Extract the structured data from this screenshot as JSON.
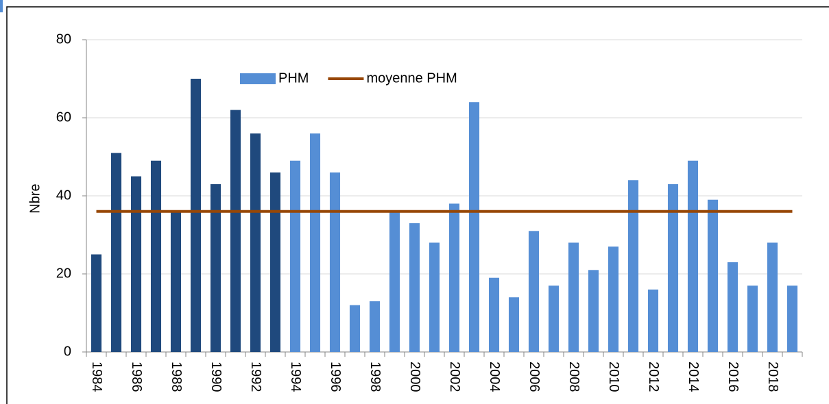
{
  "chart_data": {
    "type": "bar",
    "y_label": "Nbre",
    "categories": [
      "1984",
      null,
      "1986",
      null,
      "1988",
      null,
      "1990",
      null,
      "1992",
      null,
      "1994",
      null,
      "1996",
      null,
      "1998",
      null,
      "2000",
      null,
      "2002",
      null,
      "2004",
      null,
      "2006",
      null,
      "2008",
      null,
      "2010",
      null,
      "2012",
      null,
      "2014",
      null,
      "2016",
      null,
      "2018",
      null
    ],
    "series": [
      {
        "name": "PHM",
        "type": "bar",
        "color": "#558ed5",
        "colors": [
          "#1f497d",
          "#1f497d",
          "#1f497d",
          "#1f497d",
          "#1f497d",
          "#1f497d",
          "#1f497d",
          "#1f497d",
          "#1f497d",
          "#1f497d",
          "#558ed5",
          "#558ed5",
          "#558ed5",
          "#558ed5",
          "#558ed5",
          "#558ed5",
          "#558ed5",
          "#558ed5",
          "#558ed5",
          "#558ed5",
          "#558ed5",
          "#558ed5",
          "#558ed5",
          "#558ed5",
          "#558ed5",
          "#558ed5",
          "#558ed5",
          "#558ed5",
          "#558ed5",
          "#558ed5",
          "#558ed5",
          "#558ed5",
          "#558ed5",
          "#558ed5",
          "#558ed5",
          "#558ed5"
        ],
        "values": [
          25,
          51,
          45,
          49,
          36,
          70,
          43,
          62,
          56,
          46,
          49,
          56,
          46,
          12,
          13,
          36,
          33,
          28,
          38,
          64,
          19,
          14,
          31,
          17,
          28,
          21,
          27,
          44,
          16,
          43,
          49,
          39,
          23,
          17,
          28,
          17
        ]
      },
      {
        "name": "moyenne PHM",
        "type": "line",
        "color": "#974706",
        "values": [
          36,
          36,
          36,
          36,
          36,
          36,
          36,
          36,
          36,
          36,
          36,
          36,
          36,
          36,
          36,
          36,
          36,
          36,
          36,
          36,
          36,
          36,
          36,
          36,
          36,
          36,
          36,
          36,
          36,
          36,
          36,
          36,
          36,
          36,
          36,
          36
        ]
      }
    ],
    "ylim": [
      0,
      80
    ],
    "yticks": [
      0,
      20,
      40,
      60,
      80
    ],
    "grid": true
  }
}
